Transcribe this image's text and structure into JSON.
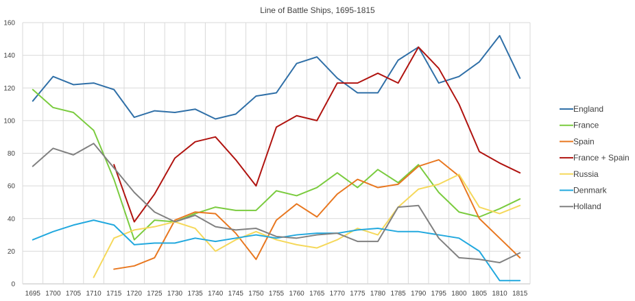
{
  "chart_data": {
    "type": "line",
    "title": "Line of Battle Ships, 1695-1815",
    "xlabel": "",
    "ylabel": "",
    "ylim": [
      0,
      160
    ],
    "yticks": [
      0,
      20,
      40,
      60,
      80,
      100,
      120,
      140,
      160
    ],
    "grid": "vertical and horizontal",
    "legend_position": "right",
    "categories": [
      "1695",
      "1700",
      "1705",
      "1710",
      "1715",
      "1720",
      "1725",
      "1730",
      "1735",
      "1740",
      "1745",
      "1750",
      "1755",
      "1760",
      "1765",
      "1770",
      "1775",
      "1780",
      "1785",
      "1790",
      "1795",
      "1800",
      "1805",
      "1810",
      "1815"
    ],
    "series": [
      {
        "name": "England",
        "color": "#2f6fa7",
        "values": [
          112,
          127,
          122,
          123,
          119,
          102,
          106,
          105,
          107,
          101,
          104,
          115,
          117,
          135,
          139,
          126,
          117,
          117,
          137,
          145,
          123,
          127,
          136,
          152,
          126
        ]
      },
      {
        "name": "France",
        "color": "#7acb3e",
        "values": [
          119,
          108,
          105,
          94,
          64,
          27,
          39,
          38,
          43,
          47,
          45,
          45,
          57,
          54,
          59,
          68,
          59,
          70,
          62,
          73,
          56,
          44,
          41,
          46,
          52
        ]
      },
      {
        "name": "Spain",
        "color": "#e8771f",
        "values": [
          null,
          null,
          null,
          null,
          9,
          11,
          16,
          39,
          44,
          43,
          31,
          15,
          39,
          49,
          41,
          55,
          64,
          59,
          61,
          72,
          76,
          66,
          40,
          28,
          16
        ]
      },
      {
        "name": "France + Spain",
        "color": "#b0130f",
        "values": [
          null,
          null,
          null,
          null,
          73,
          38,
          55,
          77,
          87,
          90,
          76,
          60,
          96,
          103,
          100,
          123,
          123,
          129,
          123,
          145,
          132,
          110,
          81,
          74,
          68
        ]
      },
      {
        "name": "Russia",
        "color": "#f5d85a",
        "values": [
          null,
          null,
          null,
          4,
          28,
          33,
          35,
          38,
          34,
          20,
          27,
          32,
          27,
          24,
          22,
          27,
          34,
          30,
          47,
          58,
          61,
          67,
          47,
          43,
          48
        ]
      },
      {
        "name": "Denmark",
        "color": "#21a8de",
        "values": [
          27,
          32,
          36,
          39,
          36,
          24,
          25,
          25,
          28,
          26,
          28,
          30,
          28,
          30,
          31,
          31,
          33,
          34,
          32,
          32,
          30,
          28,
          20,
          2,
          2
        ]
      },
      {
        "name": "Holland",
        "color": "#808080",
        "values": [
          72,
          83,
          79,
          86,
          71,
          56,
          44,
          38,
          42,
          35,
          33,
          34,
          29,
          28,
          30,
          31,
          26,
          26,
          47,
          48,
          28,
          16,
          15,
          13,
          19
        ]
      }
    ]
  }
}
